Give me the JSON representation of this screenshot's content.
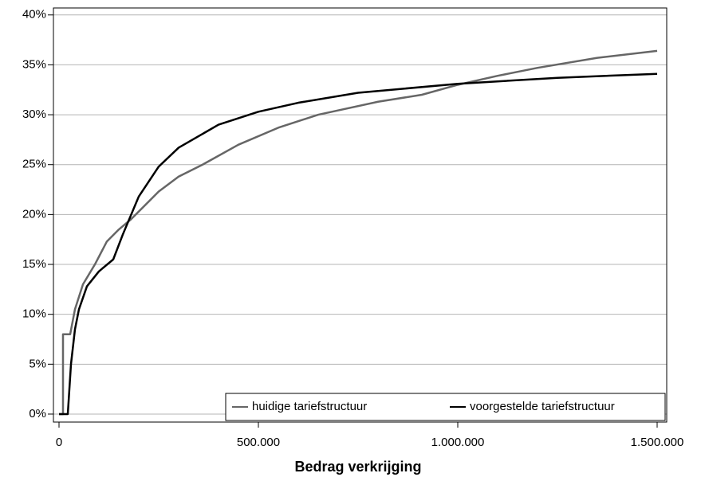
{
  "chart_data": {
    "type": "line",
    "xlabel": "Bedrag verkrijging",
    "xlim": [
      -14000,
      1524000
    ],
    "ylim": [
      -0.8,
      40.7
    ],
    "xticks": [
      0,
      {
        "value": 500000,
        "label": "500.000"
      },
      {
        "value": 1000000,
        "label": "1.000.000"
      },
      {
        "value": 1500000,
        "label": "1.500.000"
      }
    ],
    "yticks": [
      {
        "value": 0,
        "label": "0%"
      },
      {
        "value": 5,
        "label": "5%"
      },
      {
        "value": 10,
        "label": "10%"
      },
      {
        "value": 15,
        "label": "15%"
      },
      {
        "value": 20,
        "label": "20%"
      },
      {
        "value": 25,
        "label": "25%"
      },
      {
        "value": 30,
        "label": "30%"
      },
      {
        "value": 35,
        "label": "35%"
      },
      {
        "value": 40,
        "label": "40%"
      }
    ],
    "grid": true,
    "legend": "lower right",
    "series": [
      {
        "name": "huidige tariefstructuur",
        "color": "#666666",
        "x": [
          0,
          10000,
          10000,
          28000,
          40000,
          60000,
          90000,
          120000,
          150000,
          180000,
          250000,
          300000,
          360000,
          450000,
          550000,
          650000,
          800000,
          910000,
          1000000,
          1100000,
          1200000,
          1350000,
          1500000
        ],
        "values": [
          0,
          0,
          8,
          8,
          10.5,
          13,
          15,
          17.3,
          18.5,
          19.5,
          22.3,
          23.8,
          25,
          27,
          28.7,
          30,
          31.3,
          32,
          33,
          33.9,
          34.7,
          35.7,
          36.4
        ]
      },
      {
        "name": "voorgestelde tariefstructuur",
        "color": "#000000",
        "x": [
          0,
          22000,
          30000,
          40000,
          50000,
          70000,
          100000,
          136000,
          160000,
          200000,
          250000,
          300000,
          400000,
          500000,
          600000,
          750000,
          1000000,
          1250000,
          1500000
        ],
        "values": [
          0,
          0,
          5,
          8.5,
          10.5,
          12.8,
          14.3,
          15.5,
          18,
          21.8,
          24.8,
          26.7,
          29,
          30.3,
          31.2,
          32.2,
          33.1,
          33.7,
          34.1
        ]
      }
    ]
  }
}
